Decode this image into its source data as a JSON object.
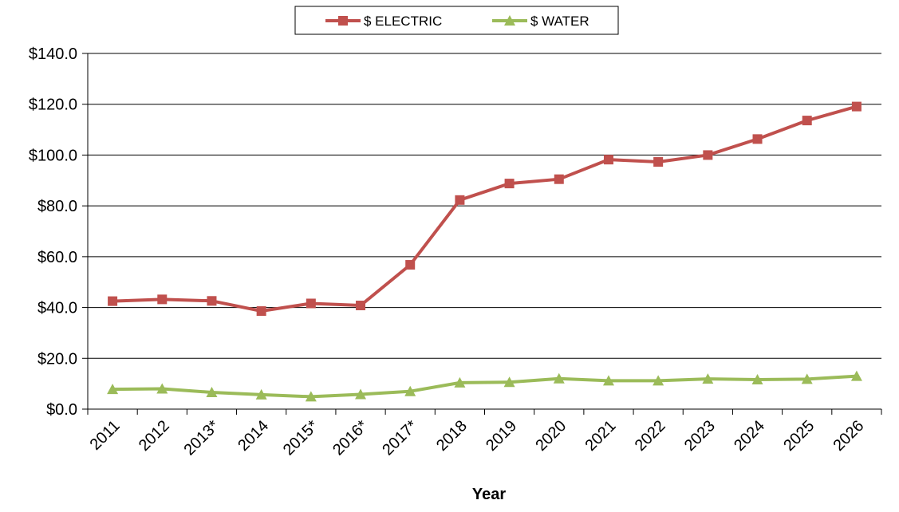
{
  "chart_data": {
    "type": "line",
    "title": "",
    "xlabel": "Year",
    "ylabel": "",
    "categories": [
      "2011",
      "2012",
      "2013*",
      "2014",
      "2015*",
      "2016*",
      "2017*",
      "2018",
      "2019",
      "2020",
      "2021",
      "2022",
      "2023",
      "2024",
      "2025",
      "2026"
    ],
    "ylim": [
      0,
      140
    ],
    "yticks": [
      0,
      20,
      40,
      60,
      80,
      100,
      120,
      140
    ],
    "ytick_labels": [
      "$0.0",
      "$20.0",
      "$40.0",
      "$60.0",
      "$80.0",
      "$100.0",
      "$120.0",
      "$140.0"
    ],
    "grid": true,
    "legend_position": "top",
    "series": [
      {
        "name": "$ ELECTRIC",
        "color": "#c0504d",
        "marker": "square",
        "values": [
          42.5,
          43.2,
          42.6,
          38.6,
          41.6,
          40.8,
          56.8,
          82.3,
          88.8,
          90.5,
          98.2,
          97.3,
          100.0,
          106.3,
          113.6,
          119.1
        ]
      },
      {
        "name": "$ WATER",
        "color": "#9bbb59",
        "marker": "triangle",
        "values": [
          7.8,
          8.0,
          6.6,
          5.7,
          4.9,
          5.8,
          7.0,
          10.4,
          10.6,
          12.0,
          11.2,
          11.2,
          11.9,
          11.6,
          11.8,
          13.0
        ]
      }
    ]
  }
}
